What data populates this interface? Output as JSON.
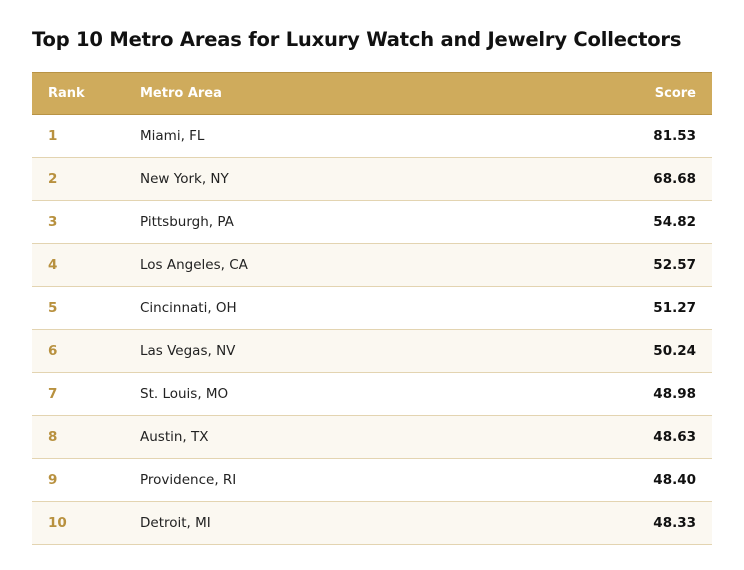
{
  "title": "Top 10 Metro Areas for Luxury Watch and Jewelry Collectors",
  "colors": {
    "header_bg": "#cfab5c",
    "header_text": "#ffffff",
    "rank_text": "#b8913f",
    "row_alt_bg": "#fbf8f1",
    "row_border": "#e3d4b1"
  },
  "chart_data": {
    "type": "table",
    "title": "Top 10 Metro Areas for Luxury Watch and Jewelry Collectors",
    "columns": [
      "Rank",
      "Metro Area",
      "Score"
    ],
    "rows": [
      {
        "rank": "1",
        "metro": "Miami, FL",
        "score": "81.53"
      },
      {
        "rank": "2",
        "metro": "New York, NY",
        "score": "68.68"
      },
      {
        "rank": "3",
        "metro": "Pittsburgh, PA",
        "score": "54.82"
      },
      {
        "rank": "4",
        "metro": "Los Angeles, CA",
        "score": "52.57"
      },
      {
        "rank": "5",
        "metro": "Cincinnati, OH",
        "score": "51.27"
      },
      {
        "rank": "6",
        "metro": "Las Vegas, NV",
        "score": "50.24"
      },
      {
        "rank": "7",
        "metro": "St. Louis, MO",
        "score": "48.98"
      },
      {
        "rank": "8",
        "metro": "Austin, TX",
        "score": "48.63"
      },
      {
        "rank": "9",
        "metro": "Providence, RI",
        "score": "48.40"
      },
      {
        "rank": "10",
        "metro": "Detroit, MI",
        "score": "48.33"
      }
    ]
  }
}
